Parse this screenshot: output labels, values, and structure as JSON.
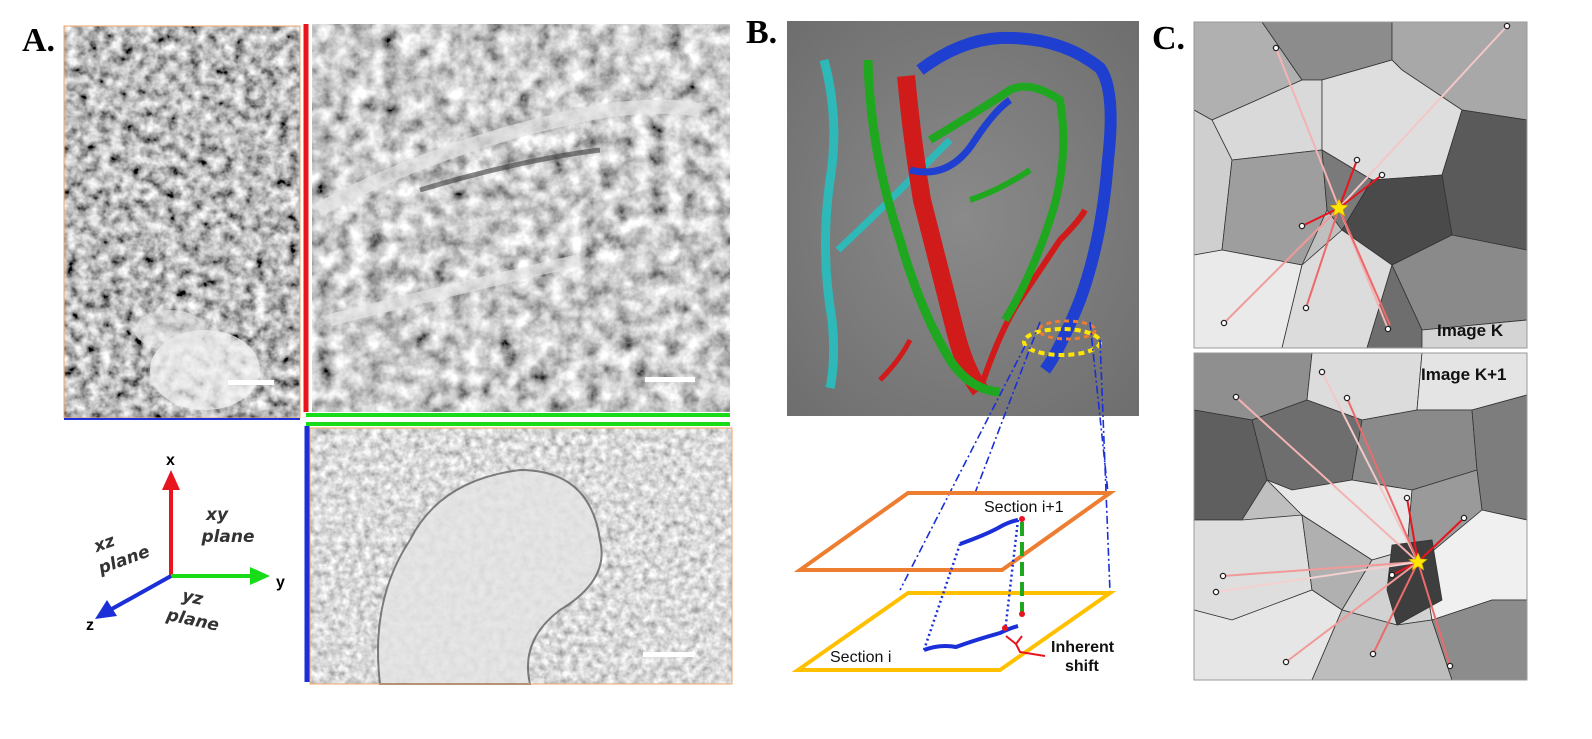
{
  "panels": {
    "a": {
      "label": "A.",
      "axes": {
        "x": "x",
        "y": "y",
        "z": "z"
      },
      "planes": {
        "xy": "xy plane",
        "xz": "xz plane",
        "yz": "yz plane"
      },
      "colors": {
        "x_axis": "#e8141e",
        "y_axis": "#18dc18",
        "z_axis": "#1a2fd8",
        "border": "#f2a46a"
      }
    },
    "b": {
      "label": "B.",
      "section_upper": "Section i+1",
      "section_lower": "Section i",
      "shift_line1": "Inherent",
      "shift_line2": "shift",
      "colors": {
        "upper_plane": "#ed7d31",
        "lower_plane": "#ffc000",
        "render_bg": "#787878"
      }
    },
    "c": {
      "label": "C.",
      "image_top": "Image K",
      "image_bottom": "Image K+1",
      "colors": {
        "star": "#ffe600",
        "line": "#e8141e"
      }
    }
  }
}
